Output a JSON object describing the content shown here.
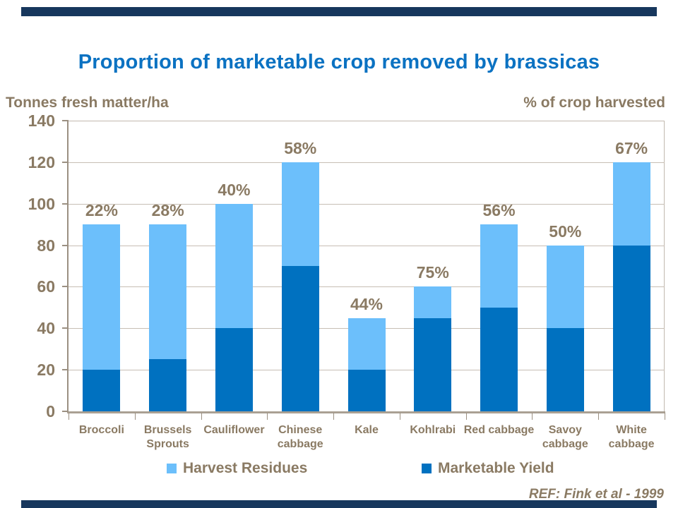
{
  "page": {
    "accent_bar_color": "#17375d",
    "background": "#ffffff"
  },
  "title": {
    "text": "Proportion of marketable crop removed by brassicas",
    "color": "#0b72c2"
  },
  "axis_titles": {
    "left": "Tonnes fresh matter/ha",
    "right": "% of crop harvested"
  },
  "chart_data": {
    "type": "bar",
    "stacked": true,
    "title": "Proportion of marketable crop removed by brassicas",
    "ylabel": "Tonnes fresh matter/ha",
    "y2label": "% of crop harvested",
    "categories": [
      "Broccoli",
      "Brussels Sprouts",
      "Cauliflower",
      "Chinese cabbage",
      "Kale",
      "Kohlrabi",
      "Red cabbage",
      "Savoy cabbage",
      "White cabbage"
    ],
    "series": [
      {
        "name": "Marketable Yield",
        "color": "#0071c0",
        "values": [
          20,
          25,
          40,
          70,
          20,
          45,
          50,
          40,
          80
        ]
      },
      {
        "name": "Harvest Residues",
        "color": "#6cbffb",
        "values": [
          70,
          65,
          60,
          50,
          25,
          15,
          40,
          40,
          40
        ]
      }
    ],
    "totals": [
      90,
      90,
      100,
      120,
      45,
      60,
      90,
      80,
      120
    ],
    "bar_labels": [
      "22%",
      "28%",
      "40%",
      "58%",
      "44%",
      "75%",
      "56%",
      "50%",
      "67%"
    ],
    "ylim": [
      0,
      140
    ],
    "yticks": [
      0,
      20,
      40,
      60,
      80,
      100,
      120,
      140
    ],
    "grid": true,
    "legend_position": "bottom"
  },
  "legend": {
    "items": [
      {
        "label": "Harvest Residues",
        "color": "#6cbffb"
      },
      {
        "label": "Marketable Yield",
        "color": "#0071c0"
      }
    ]
  },
  "footer": {
    "ref": "REF: Fink et al - 1999"
  }
}
